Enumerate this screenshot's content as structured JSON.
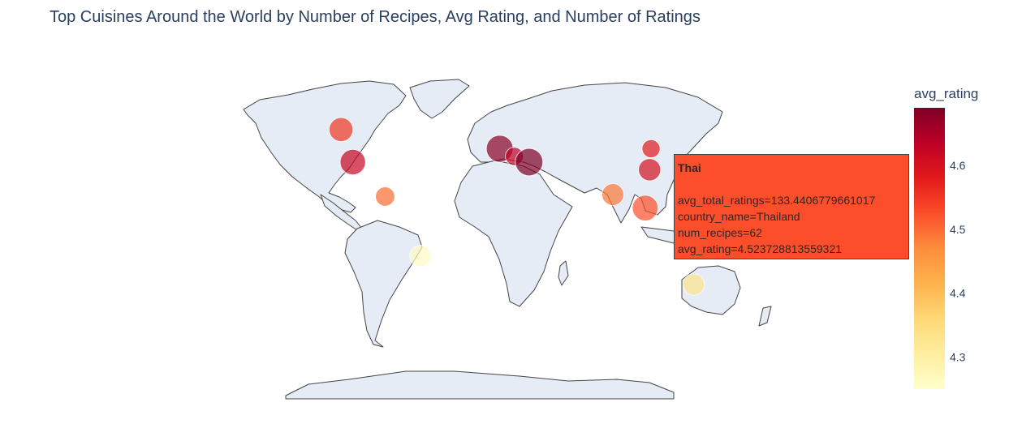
{
  "chart_data": {
    "type": "scatter_geo",
    "title": "Top Cuisines Around the World by Number of Recipes, Avg Rating, and Number of Ratings",
    "size_field": "num_recipes",
    "color_field": "avg_rating",
    "colorscale": [
      "#ffffcc",
      "#ffeda0",
      "#fed976",
      "#feb24c",
      "#fd8d3c",
      "#fc4e2a",
      "#e31a1c",
      "#bd0026",
      "#800026"
    ],
    "color_range": [
      4.25,
      4.69
    ],
    "points": [
      {
        "lon": -106,
        "lat": 56,
        "num_recipes": 50,
        "avg_rating": 4.55
      },
      {
        "lon": -98,
        "lat": 39,
        "num_recipes": 60,
        "avg_rating": 4.62
      },
      {
        "lon": -76,
        "lat": 21,
        "num_recipes": 25,
        "avg_rating": 4.5
      },
      {
        "lon": -52,
        "lat": -10,
        "num_recipes": 35,
        "avg_rating": 4.26
      },
      {
        "lon": 2,
        "lat": 46,
        "num_recipes": 70,
        "avg_rating": 4.68
      },
      {
        "lon": 12,
        "lat": 42,
        "num_recipes": 20,
        "avg_rating": 4.63
      },
      {
        "lon": 22,
        "lat": 39,
        "num_recipes": 75,
        "avg_rating": 4.69
      },
      {
        "lon": 105,
        "lat": 46,
        "num_recipes": 20,
        "avg_rating": 4.58
      },
      {
        "lon": 104,
        "lat": 35,
        "num_recipes": 40,
        "avg_rating": 4.6
      },
      {
        "lon": 79,
        "lat": 22,
        "num_recipes": 38,
        "avg_rating": 4.49
      },
      {
        "lon": 101,
        "lat": 15,
        "num_recipes": 62,
        "avg_rating": 4.523728813559321
      },
      {
        "lon": 134,
        "lat": -25,
        "num_recipes": 35,
        "avg_rating": 4.33
      }
    ],
    "colorbar": {
      "title": "avg_rating",
      "ticks": [
        "4.3",
        "4.4",
        "4.5",
        "4.6"
      ],
      "tick_values": [
        4.3,
        4.4,
        4.5,
        4.6
      ]
    }
  },
  "tooltip": {
    "title": "Thai",
    "lines": [
      "avg_total_ratings=133.4406779661017",
      "country_name=Thailand",
      "num_recipes=62",
      "avg_rating=4.523728813559321"
    ],
    "background": "#fc4e2a"
  }
}
